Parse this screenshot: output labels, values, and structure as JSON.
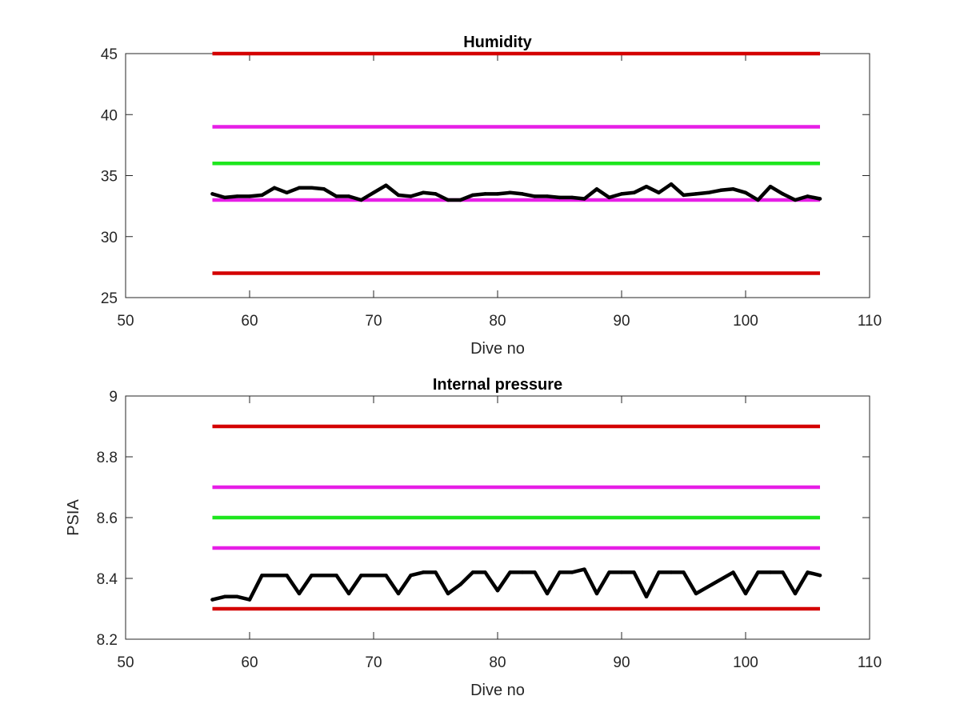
{
  "figure": {
    "background": "#ffffff",
    "axis_color": "#262626"
  },
  "chart_data": [
    {
      "type": "line",
      "title": "Humidity",
      "xlabel": "Dive no",
      "ylabel": "",
      "xlim": [
        50,
        110
      ],
      "ylim": [
        25,
        45
      ],
      "xticks": [
        50,
        60,
        70,
        80,
        90,
        100,
        110
      ],
      "yticks": [
        25,
        30,
        35,
        40,
        45
      ],
      "grid": false,
      "legend": false,
      "limit_lines": [
        {
          "y": 45,
          "x": [
            57,
            106
          ],
          "color": "#d40000"
        },
        {
          "y": 39,
          "x": [
            57,
            106
          ],
          "color": "#e61ee6"
        },
        {
          "y": 36,
          "x": [
            57,
            106
          ],
          "color": "#1ee61e"
        },
        {
          "y": 33,
          "x": [
            57,
            106
          ],
          "color": "#e61ee6"
        },
        {
          "y": 27,
          "x": [
            57,
            106
          ],
          "color": "#d40000"
        }
      ],
      "series": [
        {
          "color": "#000000",
          "x": [
            57,
            58,
            59,
            60,
            61,
            62,
            63,
            64,
            65,
            66,
            67,
            68,
            69,
            70,
            71,
            72,
            73,
            74,
            75,
            76,
            77,
            78,
            79,
            80,
            81,
            82,
            83,
            84,
            85,
            86,
            87,
            88,
            89,
            90,
            91,
            92,
            93,
            94,
            95,
            96,
            97,
            98,
            99,
            100,
            101,
            102,
            103,
            104,
            105,
            106
          ],
          "y": [
            33.5,
            33.2,
            33.3,
            33.3,
            33.4,
            34.0,
            33.6,
            34.0,
            34.0,
            33.9,
            33.3,
            33.3,
            33.0,
            33.6,
            34.2,
            33.4,
            33.3,
            33.6,
            33.5,
            33.0,
            33.0,
            33.4,
            33.5,
            33.5,
            33.6,
            33.5,
            33.3,
            33.3,
            33.2,
            33.2,
            33.1,
            33.9,
            33.2,
            33.5,
            33.6,
            34.1,
            33.6,
            34.3,
            33.4,
            33.5,
            33.6,
            33.8,
            33.9,
            33.6,
            33.0,
            34.1,
            33.5,
            33.0,
            33.3,
            33.1
          ]
        }
      ]
    },
    {
      "type": "line",
      "title": "Internal pressure",
      "xlabel": "Dive no",
      "ylabel": "PSIA",
      "xlim": [
        50,
        110
      ],
      "ylim": [
        8.2,
        9
      ],
      "xticks": [
        50,
        60,
        70,
        80,
        90,
        100,
        110
      ],
      "yticks": [
        8.2,
        8.4,
        8.6,
        8.8,
        9
      ],
      "grid": false,
      "legend": false,
      "limit_lines": [
        {
          "y": 8.9,
          "x": [
            57,
            106
          ],
          "color": "#d40000"
        },
        {
          "y": 8.7,
          "x": [
            57,
            106
          ],
          "color": "#e61ee6"
        },
        {
          "y": 8.6,
          "x": [
            57,
            106
          ],
          "color": "#1ee61e"
        },
        {
          "y": 8.5,
          "x": [
            57,
            106
          ],
          "color": "#e61ee6"
        },
        {
          "y": 8.3,
          "x": [
            57,
            106
          ],
          "color": "#d40000"
        }
      ],
      "series": [
        {
          "color": "#000000",
          "x": [
            57,
            58,
            59,
            60,
            61,
            62,
            63,
            64,
            65,
            66,
            67,
            68,
            69,
            70,
            71,
            72,
            73,
            74,
            75,
            76,
            77,
            78,
            79,
            80,
            81,
            82,
            83,
            84,
            85,
            86,
            87,
            88,
            89,
            90,
            91,
            92,
            93,
            94,
            95,
            96,
            99,
            100,
            101,
            102,
            103,
            104,
            105,
            106
          ],
          "y": [
            8.33,
            8.34,
            8.34,
            8.33,
            8.41,
            8.41,
            8.41,
            8.35,
            8.41,
            8.41,
            8.41,
            8.35,
            8.41,
            8.41,
            8.41,
            8.35,
            8.41,
            8.42,
            8.42,
            8.35,
            8.38,
            8.42,
            8.42,
            8.36,
            8.42,
            8.42,
            8.42,
            8.35,
            8.42,
            8.42,
            8.43,
            8.35,
            8.42,
            8.42,
            8.42,
            8.34,
            8.42,
            8.42,
            8.42,
            8.35,
            8.42,
            8.35,
            8.42,
            8.42,
            8.42,
            8.35,
            8.42,
            8.41
          ]
        }
      ]
    }
  ]
}
